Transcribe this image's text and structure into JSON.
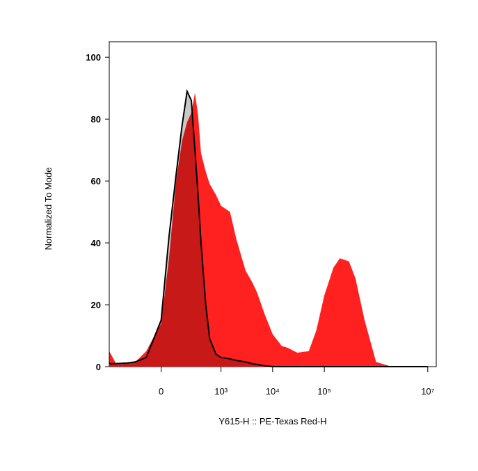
{
  "chart_data": {
    "type": "histogram-overlay",
    "x_label": "Y615-H :: PE-Texas Red-H",
    "y_label": "Normalized To Mode",
    "x_scale": "biexponential",
    "xlim": [
      -700,
      14600000
    ],
    "ylim": [
      0,
      105
    ],
    "xticks": [
      0,
      {
        "value": 1000,
        "label": "10³"
      },
      {
        "value": 10000,
        "label": "10⁴"
      },
      {
        "value": 100000,
        "label": "10⁵"
      },
      {
        "value": 10000000,
        "label": "10⁷"
      }
    ],
    "yticks": [
      0,
      20,
      40,
      60,
      80,
      100
    ],
    "x": [
      -700,
      -500,
      -300,
      -200,
      -100,
      0,
      50,
      100,
      150,
      200,
      250,
      300,
      350,
      400,
      500,
      600,
      800,
      1000,
      1500,
      2000,
      3000,
      4000,
      5000,
      7000,
      10000,
      15000,
      20000,
      30000,
      50000,
      70000,
      100000,
      150000,
      200000,
      300000,
      400000,
      600000,
      1000000,
      2000000,
      10000000
    ],
    "series": [
      {
        "color": "#c8c8c8",
        "edge_color": "#000000",
        "values": [
          1,
          1,
          1.2,
          1.5,
          3,
          15,
          42,
          62,
          78,
          89,
          86,
          70,
          55,
          40,
          20,
          9,
          4,
          3,
          2.5,
          2,
          1.5,
          1,
          0.7,
          0.3,
          0,
          0,
          0,
          0,
          0,
          0,
          0,
          0,
          0,
          0,
          0,
          0,
          0,
          0,
          0
        ]
      },
      {
        "color": "#ff2020",
        "values": [
          5,
          0.7,
          1,
          1.5,
          5,
          14,
          35,
          60,
          73,
          79,
          82,
          88.5,
          81,
          69,
          63,
          59,
          55.5,
          52,
          50,
          41,
          31,
          27.4,
          24,
          17,
          10.5,
          6.7,
          6,
          4.5,
          5,
          11.7,
          23,
          32,
          35,
          34,
          28.5,
          15,
          1.5,
          0,
          0
        ]
      }
    ]
  }
}
